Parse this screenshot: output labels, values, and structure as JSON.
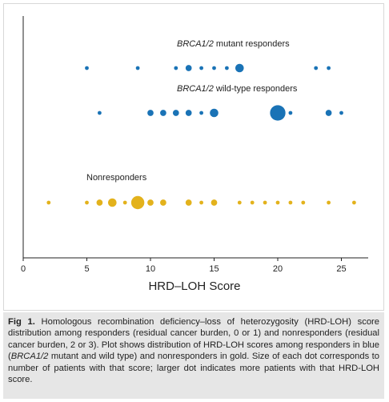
{
  "chart_data": {
    "type": "scatter",
    "title": "",
    "xlabel": "HRD–LOH Score",
    "ylabel": "",
    "xlim": [
      0,
      27
    ],
    "xticks": [
      0,
      5,
      10,
      15,
      20,
      25
    ],
    "grid": false,
    "series": [
      {
        "gene": "BRCA1/2",
        "name_rest": " mutant responders",
        "color": "#1a73b6",
        "points": [
          {
            "x": 5,
            "count": 1
          },
          {
            "x": 9,
            "count": 1
          },
          {
            "x": 12,
            "count": 1
          },
          {
            "x": 13,
            "count": 2
          },
          {
            "x": 14,
            "count": 1
          },
          {
            "x": 15,
            "count": 1
          },
          {
            "x": 16,
            "count": 1
          },
          {
            "x": 17,
            "count": 3
          },
          {
            "x": 23,
            "count": 1
          },
          {
            "x": 24,
            "count": 1
          }
        ]
      },
      {
        "gene": "BRCA1/2",
        "name_rest": " wild-type responders",
        "color": "#1a73b6",
        "points": [
          {
            "x": 6,
            "count": 1
          },
          {
            "x": 10,
            "count": 2
          },
          {
            "x": 11,
            "count": 2
          },
          {
            "x": 12,
            "count": 2
          },
          {
            "x": 13,
            "count": 2
          },
          {
            "x": 14,
            "count": 1
          },
          {
            "x": 15,
            "count": 3
          },
          {
            "x": 20,
            "count": 6
          },
          {
            "x": 21,
            "count": 1
          },
          {
            "x": 24,
            "count": 2
          },
          {
            "x": 25,
            "count": 1
          }
        ]
      },
      {
        "gene": "",
        "name_rest": "Nonresponders",
        "color": "#e3b21c",
        "points": [
          {
            "x": 2,
            "count": 1
          },
          {
            "x": 5,
            "count": 1
          },
          {
            "x": 6,
            "count": 2
          },
          {
            "x": 7,
            "count": 3
          },
          {
            "x": 8,
            "count": 1
          },
          {
            "x": 9,
            "count": 5
          },
          {
            "x": 10,
            "count": 2
          },
          {
            "x": 11,
            "count": 2
          },
          {
            "x": 13,
            "count": 2
          },
          {
            "x": 14,
            "count": 1
          },
          {
            "x": 15,
            "count": 2
          },
          {
            "x": 17,
            "count": 1
          },
          {
            "x": 18,
            "count": 1
          },
          {
            "x": 19,
            "count": 1
          },
          {
            "x": 20,
            "count": 1
          },
          {
            "x": 21,
            "count": 1
          },
          {
            "x": 22,
            "count": 1
          },
          {
            "x": 24,
            "count": 1
          },
          {
            "x": 26,
            "count": 1
          }
        ]
      }
    ]
  },
  "caption": {
    "fig_label": "Fig 1.",
    "text_1": "  Homologous recombination deficiency–loss of heterozygosity (HRD-LOH) score distribution among responders (residual cancer burden, 0 or 1) and nonresponders (residual cancer burden, 2 or 3). Plot shows distribution of HRD-LOH scores among responders in blue (",
    "gene": "BRCA1/2",
    "text_2": " mutant and wild type) and nonresponders in gold. Size of each dot corresponds to number of patients with that score; larger dot indicates more patients with that HRD-LOH score."
  }
}
